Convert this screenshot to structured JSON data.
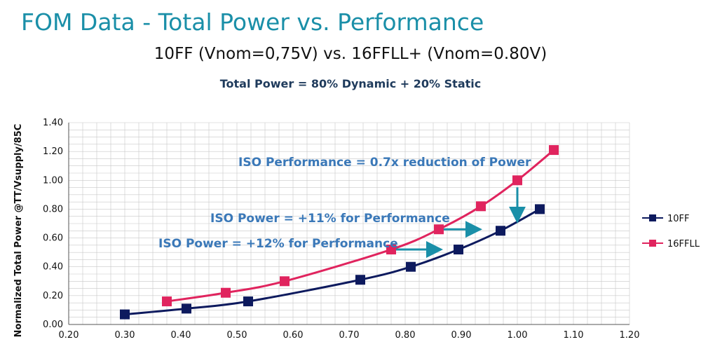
{
  "header": {
    "title": "FOM Data - Total Power vs. Performance",
    "subtitle": "10FF (Vnom=0,75V) vs. 16FFLL+ (Vnom=0.80V)",
    "note": "Total Power = 80% Dynamic + 20% Static"
  },
  "chart_data": {
    "type": "scatter",
    "ylabel": "Normalized Total Power @TT/Vsupply/85C",
    "xlabel": "",
    "xlim": [
      0.2,
      1.2
    ],
    "ylim": [
      0.0,
      1.4
    ],
    "x_ticks": [
      "0.20",
      "0.30",
      "0.40",
      "0.50",
      "0.60",
      "0.70",
      "0.80",
      "0.90",
      "1.00",
      "1.10",
      "1.20"
    ],
    "y_ticks": [
      "0.00",
      "0.20",
      "0.40",
      "0.60",
      "0.80",
      "1.00",
      "1.20",
      "1.40"
    ],
    "grid": true,
    "legend_position": "right",
    "series": [
      {
        "name": "10FF",
        "color": "#0d1a5e",
        "x": [
          0.3,
          0.41,
          0.52,
          0.72,
          0.81,
          0.895,
          0.97,
          1.04
        ],
        "y": [
          0.07,
          0.11,
          0.16,
          0.31,
          0.4,
          0.52,
          0.65,
          0.8
        ]
      },
      {
        "name": "16FFLL",
        "color": "#e0245e",
        "x": [
          0.375,
          0.48,
          0.585,
          0.775,
          0.86,
          0.935,
          1.0,
          1.065
        ],
        "y": [
          0.16,
          0.22,
          0.3,
          0.52,
          0.66,
          0.82,
          1.0,
          1.21
        ]
      }
    ],
    "annotations": [
      {
        "text": "ISO Performance = 0.7x reduction of Power"
      },
      {
        "text": "ISO Power = +11% for Performance"
      },
      {
        "text": "ISO Power = +12% for Performance"
      }
    ]
  }
}
